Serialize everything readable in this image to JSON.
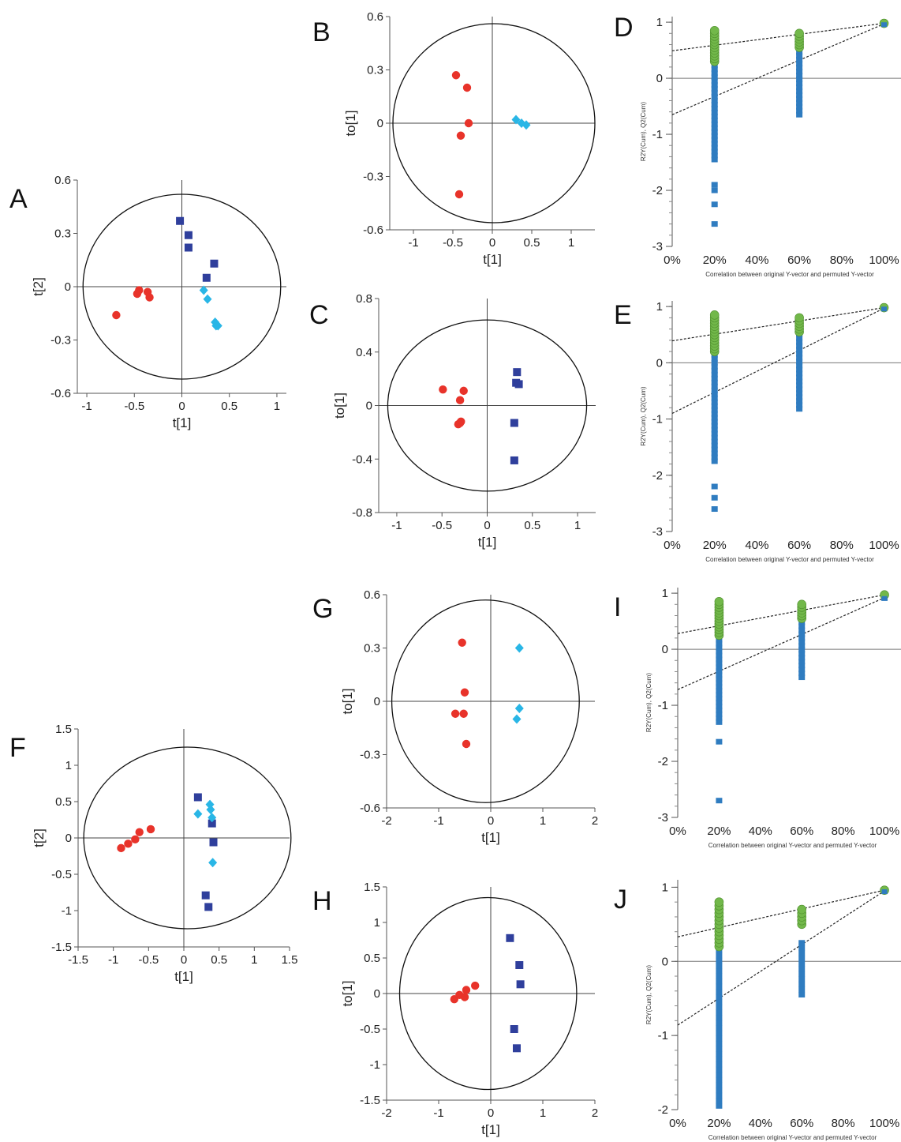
{
  "colors": {
    "group_red": "#e8332a",
    "group_navy": "#2f3f9c",
    "group_cyan": "#29b6e6",
    "perm_r2": "#72b84a",
    "perm_q2": "#2f7cc0"
  },
  "chart_data": [
    {
      "id": "A",
      "type": "scatter",
      "letter": "A",
      "xlabel": "t[1]",
      "ylabel": "t[2]",
      "xlim": [
        -1.1,
        1.1
      ],
      "ylim": [
        -0.6,
        0.6
      ],
      "xticks": [
        -1,
        -0.5,
        0,
        0.5,
        1
      ],
      "xtick_labels": [
        "-1",
        "-0.5",
        "0",
        "0.5",
        "1"
      ],
      "yticks": [
        -0.6,
        -0.3,
        0,
        0.3,
        0.6
      ],
      "ytick_labels": [
        "-0.6",
        "-0.3",
        "0",
        "0.3",
        "0.6"
      ],
      "ellipse": {
        "rx": 1.04,
        "ry": 0.52
      },
      "series": [
        {
          "marker": "circle",
          "color": "group_red",
          "points": [
            [
              -0.69,
              -0.16
            ],
            [
              -0.47,
              -0.04
            ],
            [
              -0.45,
              -0.02
            ],
            [
              -0.36,
              -0.03
            ],
            [
              -0.34,
              -0.06
            ]
          ]
        },
        {
          "marker": "square",
          "color": "group_navy",
          "points": [
            [
              -0.02,
              0.37
            ],
            [
              0.07,
              0.29
            ],
            [
              0.07,
              0.22
            ],
            [
              0.34,
              0.13
            ],
            [
              0.26,
              0.05
            ]
          ]
        },
        {
          "marker": "diamond",
          "color": "group_cyan",
          "points": [
            [
              0.23,
              -0.02
            ],
            [
              0.27,
              -0.07
            ],
            [
              0.35,
              -0.2
            ],
            [
              0.36,
              -0.22
            ],
            [
              0.38,
              -0.22
            ]
          ]
        }
      ]
    },
    {
      "id": "B",
      "type": "scatter",
      "letter": "B",
      "xlabel": "t[1]",
      "ylabel": "to[1]",
      "xlim": [
        -1.3,
        1.3
      ],
      "ylim": [
        -0.6,
        0.6
      ],
      "xticks": [
        -1,
        -0.5,
        0,
        0.5,
        1
      ],
      "xtick_labels": [
        "-1",
        "-0.5",
        "0",
        "0.5",
        "1"
      ],
      "yticks": [
        -0.6,
        -0.3,
        0,
        0.3,
        0.6
      ],
      "ytick_labels": [
        "-0.6",
        "-0.3",
        "0",
        "0.3",
        "0.6"
      ],
      "ellipse": {
        "rx": 1.28,
        "ry": 0.56
      },
      "series": [
        {
          "marker": "circle",
          "color": "group_red",
          "points": [
            [
              -0.46,
              0.27
            ],
            [
              -0.32,
              0.2
            ],
            [
              -0.3,
              0.0
            ],
            [
              -0.4,
              -0.07
            ],
            [
              -0.42,
              -0.4
            ]
          ]
        },
        {
          "marker": "diamond",
          "color": "group_cyan",
          "points": [
            [
              0.3,
              0.02
            ],
            [
              0.37,
              0.0
            ],
            [
              0.43,
              -0.01
            ]
          ]
        }
      ]
    },
    {
      "id": "C",
      "type": "scatter",
      "letter": "C",
      "xlabel": "t[1]",
      "ylabel": "to[1]",
      "xlim": [
        -1.2,
        1.2
      ],
      "ylim": [
        -0.8,
        0.8
      ],
      "xticks": [
        -1,
        -0.5,
        0,
        0.5,
        1
      ],
      "xtick_labels": [
        "-1",
        "-0.5",
        "0",
        "0.5",
        "1"
      ],
      "yticks": [
        -0.8,
        -0.4,
        0,
        0.4,
        0.8
      ],
      "ytick_labels": [
        "-0.8",
        "-0.4",
        "0",
        "0.4",
        "0.8"
      ],
      "ellipse": {
        "rx": 1.1,
        "ry": 0.64
      },
      "series": [
        {
          "marker": "circle",
          "color": "group_red",
          "points": [
            [
              -0.49,
              0.12
            ],
            [
              -0.26,
              0.11
            ],
            [
              -0.3,
              0.04
            ],
            [
              -0.29,
              -0.12
            ],
            [
              -0.3,
              -0.13
            ],
            [
              -0.32,
              -0.14
            ]
          ]
        },
        {
          "marker": "square",
          "color": "group_navy",
          "points": [
            [
              0.33,
              0.25
            ],
            [
              0.32,
              0.17
            ],
            [
              0.35,
              0.16
            ],
            [
              0.3,
              -0.13
            ],
            [
              0.3,
              -0.41
            ]
          ]
        }
      ]
    },
    {
      "id": "F",
      "type": "scatter",
      "letter": "F",
      "xlabel": "t[1]",
      "ylabel": "t[2]",
      "xlim": [
        -1.5,
        1.5
      ],
      "ylim": [
        -1.5,
        1.5
      ],
      "xticks": [
        -1.5,
        -1,
        -0.5,
        0,
        0.5,
        1,
        1.5
      ],
      "xtick_labels": [
        "-1.5",
        "-1",
        "-0.5",
        "0",
        "0.5",
        "1",
        "1.5"
      ],
      "yticks": [
        -1.5,
        -1,
        -0.5,
        0,
        0.5,
        1,
        1.5
      ],
      "ytick_labels": [
        "-1.5",
        "-1",
        "-0.5",
        "0",
        "0.5",
        "1",
        "1.5"
      ],
      "ellipse": {
        "rx": 1.47,
        "ry": 1.25
      },
      "series": [
        {
          "marker": "circle",
          "color": "group_red",
          "points": [
            [
              -0.89,
              -0.14
            ],
            [
              -0.79,
              -0.08
            ],
            [
              -0.69,
              -0.02
            ],
            [
              -0.63,
              0.08
            ],
            [
              -0.47,
              0.12
            ]
          ]
        },
        {
          "marker": "square",
          "color": "group_navy",
          "points": [
            [
              0.2,
              0.56
            ],
            [
              0.4,
              0.2
            ],
            [
              0.42,
              -0.06
            ],
            [
              0.31,
              -0.79
            ],
            [
              0.35,
              -0.95
            ]
          ]
        },
        {
          "marker": "diamond",
          "color": "group_cyan",
          "points": [
            [
              0.37,
              0.46
            ],
            [
              0.38,
              0.39
            ],
            [
              0.2,
              0.33
            ],
            [
              0.4,
              0.28
            ],
            [
              0.41,
              -0.34
            ]
          ]
        }
      ]
    },
    {
      "id": "G",
      "type": "scatter",
      "letter": "G",
      "xlabel": "t[1]",
      "ylabel": "to[1]",
      "xlim": [
        -2,
        2
      ],
      "ylim": [
        -0.6,
        0.6
      ],
      "xticks": [
        -2,
        -1,
        0,
        1,
        2
      ],
      "xtick_labels": [
        "-2",
        "-1",
        "0",
        "1",
        "2"
      ],
      "yticks": [
        -0.6,
        -0.3,
        0,
        0.3,
        0.6
      ],
      "ytick_labels": [
        "-0.6",
        "-0.3",
        "0",
        "0.3",
        "0.6"
      ],
      "ellipse": {
        "rx": 1.8,
        "ry": 0.57
      },
      "series": [
        {
          "marker": "circle",
          "color": "group_red",
          "points": [
            [
              -0.55,
              0.33
            ],
            [
              -0.5,
              0.05
            ],
            [
              -0.68,
              -0.07
            ],
            [
              -0.52,
              -0.07
            ],
            [
              -0.47,
              -0.24
            ]
          ]
        },
        {
          "marker": "diamond",
          "color": "group_cyan",
          "points": [
            [
              0.55,
              0.3
            ],
            [
              0.55,
              -0.04
            ],
            [
              0.5,
              -0.1
            ]
          ]
        }
      ]
    },
    {
      "id": "H",
      "type": "scatter",
      "letter": "H",
      "xlabel": "t[1]",
      "ylabel": "to[1]",
      "xlim": [
        -2,
        2
      ],
      "ylim": [
        -1.5,
        1.5
      ],
      "xticks": [
        -2,
        -1,
        0,
        1,
        2
      ],
      "xtick_labels": [
        "-2",
        "-1",
        "0",
        "1",
        "2"
      ],
      "yticks": [
        -1.5,
        -1,
        -0.5,
        0,
        0.5,
        1,
        1.5
      ],
      "ytick_labels": [
        "-1.5",
        "-1",
        "-0.5",
        "0",
        "0.5",
        "1",
        "1.5"
      ],
      "ellipse": {
        "rx": 1.7,
        "ry": 1.35
      },
      "series": [
        {
          "marker": "circle",
          "color": "group_red",
          "points": [
            [
              -0.7,
              -0.08
            ],
            [
              -0.6,
              -0.02
            ],
            [
              -0.5,
              -0.05
            ],
            [
              -0.47,
              0.05
            ],
            [
              -0.3,
              0.11
            ]
          ]
        },
        {
          "marker": "square",
          "color": "group_navy",
          "points": [
            [
              0.37,
              0.78
            ],
            [
              0.55,
              0.4
            ],
            [
              0.57,
              0.13
            ],
            [
              0.45,
              -0.5
            ],
            [
              0.5,
              -0.77
            ]
          ]
        }
      ]
    },
    {
      "id": "D",
      "type": "scatter",
      "letter": "D",
      "xlabel": "Correlation between original Y-vector and permuted Y-vector",
      "ylabel": "R2Y(Cum), Q2(Cum)",
      "xlim": [
        0,
        1.08
      ],
      "ylim": [
        -3,
        1.1
      ],
      "xticks": [
        0,
        0.2,
        0.4,
        0.6,
        0.8,
        1.0
      ],
      "xtick_labels": [
        "0%",
        "20%",
        "40%",
        "60%",
        "80%",
        "100%"
      ],
      "yticks": [
        -3,
        -2,
        -1,
        0,
        1
      ],
      "ytick_labels": [
        "-3",
        "-2",
        "-1",
        "0",
        "1"
      ],
      "r2_line": {
        "intercept": 0.49,
        "end": 0.98
      },
      "q2_line": {
        "intercept": -0.65,
        "end": 0.97
      },
      "r2_points": {
        "x20": [
          0.3,
          0.88
        ],
        "x60": [
          0.55,
          0.82
        ],
        "x100": 0.98
      },
      "q2_points": {
        "x20": [
          -1.45,
          0.6
        ],
        "x20_out": [
          -1.9,
          -2.0,
          -2.25,
          -2.6
        ],
        "x60": [
          -0.65,
          0.6
        ],
        "x100": 0.97
      }
    },
    {
      "id": "E",
      "type": "scatter",
      "letter": "E",
      "xlabel": "Correlation between original Y-vector and permuted Y-vector",
      "ylabel": "R2Y(Cum), Q2(Cum)",
      "xlim": [
        0,
        1.08
      ],
      "ylim": [
        -3,
        1.1
      ],
      "xticks": [
        0,
        0.2,
        0.4,
        0.6,
        0.8,
        1.0
      ],
      "xtick_labels": [
        "0%",
        "20%",
        "40%",
        "60%",
        "80%",
        "100%"
      ],
      "yticks": [
        -3,
        -2,
        -1,
        0,
        1
      ],
      "ytick_labels": [
        "-3",
        "-2",
        "-1",
        "0",
        "1"
      ],
      "r2_line": {
        "intercept": 0.39,
        "end": 0.98
      },
      "q2_line": {
        "intercept": -0.9,
        "end": 0.97
      },
      "r2_points": {
        "x20": [
          0.2,
          0.88
        ],
        "x60": [
          0.55,
          0.82
        ],
        "x100": 0.98
      },
      "q2_points": {
        "x20": [
          -1.75,
          0.6
        ],
        "x20_out": [
          -2.2,
          -2.4,
          -2.6
        ],
        "x60": [
          -0.82,
          0.55
        ],
        "x100": 0.97
      }
    },
    {
      "id": "I",
      "type": "scatter",
      "letter": "I",
      "xlabel": "Correlation between original Y-vector and permuted Y-vector",
      "ylabel": "R2Y(Cum), Q2(Cum)",
      "xlim": [
        0,
        1.08
      ],
      "ylim": [
        -3,
        1.1
      ],
      "xticks": [
        0,
        0.2,
        0.4,
        0.6,
        0.8,
        1.0
      ],
      "xtick_labels": [
        "0%",
        "20%",
        "40%",
        "60%",
        "80%",
        "100%"
      ],
      "yticks": [
        -3,
        -2,
        -1,
        0,
        1
      ],
      "ytick_labels": [
        "-3",
        "-2",
        "-1",
        "0",
        "1"
      ],
      "r2_line": {
        "intercept": 0.28,
        "end": 0.97
      },
      "q2_line": {
        "intercept": -0.72,
        "end": 0.92
      },
      "r2_points": {
        "x20": [
          0.25,
          0.85
        ],
        "x60": [
          0.55,
          0.82
        ],
        "x100": 0.97
      },
      "q2_points": {
        "x20": [
          -1.3,
          0.3
        ],
        "x20_out": [
          -1.65,
          -2.7
        ],
        "x60": [
          -0.5,
          0.5
        ],
        "x100": 0.92
      }
    },
    {
      "id": "J",
      "type": "scatter",
      "letter": "J",
      "xlabel": "Correlation between original Y-vector and permuted Y-vector",
      "ylabel": "R2Y(Cum), Q2(Cum)",
      "xlim": [
        0,
        1.08
      ],
      "ylim": [
        -2,
        1.1
      ],
      "xticks": [
        0,
        0.2,
        0.4,
        0.6,
        0.8,
        1.0
      ],
      "xtick_labels": [
        "0%",
        "20%",
        "40%",
        "60%",
        "80%",
        "100%"
      ],
      "yticks": [
        -2,
        -1,
        0,
        1
      ],
      "ytick_labels": [
        "-2",
        "-1",
        "0",
        "1"
      ],
      "r2_line": {
        "intercept": 0.33,
        "end": 0.96
      },
      "q2_line": {
        "intercept": -0.86,
        "end": 0.95
      },
      "r2_points": {
        "x20": [
          0.2,
          0.82
        ],
        "x60": [
          0.5,
          0.72
        ],
        "x100": 0.96
      },
      "q2_points": {
        "x20": [
          -1.95,
          0.4
        ],
        "x20_out": [],
        "x60": [
          -0.45,
          0.3
        ],
        "x100": 0.95
      }
    }
  ]
}
